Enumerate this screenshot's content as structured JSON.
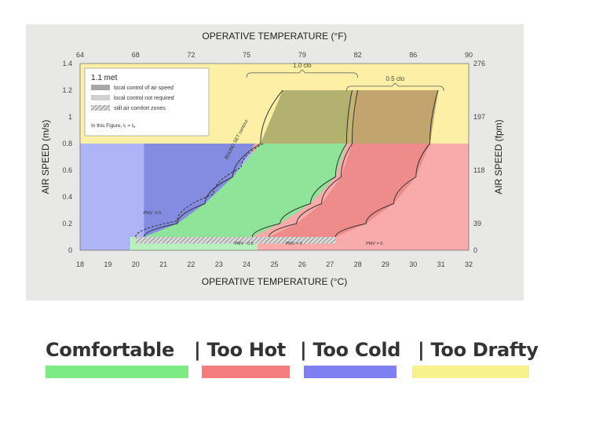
{
  "chart_data": {
    "type": "area",
    "title": "",
    "top_axis_title": "OPERATIVE TEMPERATURE (°F)",
    "xlabel": "OPERATIVE TEMPERATURE (°C)",
    "ylabel": "AIR SPEED (m/s)",
    "ylabel_right": "AIR SPEED (fpm)",
    "xlim": [
      18,
      32
    ],
    "ylim": [
      0,
      1.4
    ],
    "x_ticks": [
      "18",
      "19",
      "20",
      "21",
      "22",
      "23",
      "24",
      "25",
      "26",
      "27",
      "28",
      "29",
      "30",
      "31",
      "32"
    ],
    "y_ticks": [
      "0",
      "0.2",
      "0.4",
      "0.6",
      "0.8",
      "1",
      "1.2",
      "1.4"
    ],
    "top_ticks": [
      {
        "label": "64",
        "c": 18
      },
      {
        "label": "68",
        "c": 20
      },
      {
        "label": "72",
        "c": 22
      },
      {
        "label": "75",
        "c": 24
      },
      {
        "label": "79",
        "c": 26
      },
      {
        "label": "82",
        "c": 28
      },
      {
        "label": "86",
        "c": 30
      },
      {
        "label": "90",
        "c": 32
      }
    ],
    "right_ticks": [
      {
        "label": "0",
        "v": 0
      },
      {
        "label": "39",
        "v": 0.2
      },
      {
        "label": "118",
        "v": 0.6
      },
      {
        "label": "197",
        "v": 1.0
      },
      {
        "label": "276",
        "v": 1.4
      }
    ],
    "background_zones": [
      {
        "name": "drafty",
        "x": [
          18,
          32
        ],
        "y": [
          0.8,
          1.4
        ],
        "color": "#fdf0a6"
      },
      {
        "name": "cold",
        "x": [
          18,
          24.2
        ],
        "y": [
          0,
          0.8
        ],
        "color": "#aeb4f5"
      },
      {
        "name": "hot",
        "x": [
          24.2,
          32
        ],
        "y": [
          0,
          0.8
        ],
        "color": "#f9aaaa"
      },
      {
        "name": "comfortable-strip",
        "x": [
          19.8,
          24.4
        ],
        "y": [
          0,
          0.1
        ],
        "color": "#b8f0c0"
      }
    ],
    "comfort_curves": [
      {
        "name": "left-1.0clo",
        "points": [
          [
            20.3,
            0.1
          ],
          [
            21.5,
            0.2
          ],
          [
            22.5,
            0.35
          ],
          [
            23.5,
            0.55
          ],
          [
            24.5,
            0.8
          ],
          [
            25.3,
            1.2
          ]
        ]
      },
      {
        "name": "right-1.0clo",
        "points": [
          [
            24.2,
            0.1
          ],
          [
            25.2,
            0.2
          ],
          [
            26.3,
            0.35
          ],
          [
            27.2,
            0.55
          ],
          [
            27.6,
            0.8
          ],
          [
            27.8,
            1.2
          ]
        ]
      },
      {
        "name": "left-0.5clo",
        "points": [
          [
            24.8,
            0.1
          ],
          [
            25.8,
            0.2
          ],
          [
            26.7,
            0.35
          ],
          [
            27.4,
            0.55
          ],
          [
            27.8,
            0.8
          ],
          [
            28.0,
            1.2
          ]
        ]
      },
      {
        "name": "right-0.5clo",
        "points": [
          [
            27.2,
            0.1
          ],
          [
            28.3,
            0.2
          ],
          [
            29.3,
            0.35
          ],
          [
            30.1,
            0.55
          ],
          [
            30.6,
            0.8
          ],
          [
            30.9,
            1.2
          ]
        ]
      }
    ],
    "brackets": [
      {
        "label": "1.0 clo",
        "x": [
          24.0,
          28.0
        ],
        "y": 1.33
      },
      {
        "label": "0.5 clo",
        "x": [
          27.6,
          31.1
        ],
        "y": 1.23
      }
    ],
    "annotations": [
      {
        "text": "PMV -0.5",
        "x": 20.6,
        "y": 0.27
      },
      {
        "text": "PMV - 0.5",
        "x": 23.9,
        "y": 0.04
      },
      {
        "text": "PMV = 0",
        "x": 25.7,
        "y": 0.04
      },
      {
        "text": "PMV = 0",
        "x": 28.6,
        "y": 0.04
      },
      {
        "text": "BOUND SET contour",
        "x": 23.3,
        "y": 0.68
      }
    ],
    "inset_legend": {
      "title": "1.1 met",
      "items": [
        {
          "label": "local control of air speed",
          "swatch": "#a8a8a8"
        },
        {
          "label": "local control not required",
          "swatch": "#d0d0d0"
        },
        {
          "label": "still air comfort zones",
          "swatch": "hatch"
        }
      ],
      "note": "In this Figure, tᵣ = tₐ"
    }
  },
  "legend": {
    "comfortable": {
      "label": "Comfortable",
      "color": "#7deb84"
    },
    "hot": {
      "label": "| Too Hot",
      "color": "#f57d7d"
    },
    "cold": {
      "label": "| Too Cold",
      "color": "#7f7ff2"
    },
    "drafty": {
      "label": "| Too Drafty",
      "color": "#f8f08a"
    }
  }
}
